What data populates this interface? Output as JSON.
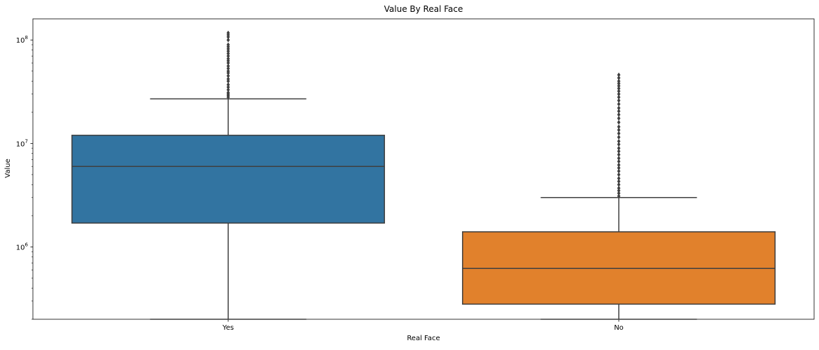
{
  "chart_data": {
    "type": "box",
    "title": "Value By Real Face",
    "xlabel": "Real Face",
    "ylabel": "Value",
    "yscale": "log",
    "ylim": [
      200000,
      160000000
    ],
    "yticks": [
      {
        "value": 1000000,
        "base": "10",
        "exp": "6"
      },
      {
        "value": 10000000,
        "base": "10",
        "exp": "7"
      },
      {
        "value": 100000000,
        "base": "10",
        "exp": "8"
      }
    ],
    "grid": false,
    "categories": [
      "Yes",
      "No"
    ],
    "boxes": [
      {
        "category": "Yes",
        "color": "#3274a1",
        "whisker_low": 200000,
        "q1": 1700000,
        "median": 6000000,
        "q3": 12000000,
        "whisker_high": 27000000,
        "fliers": [
          28000000,
          29000000,
          30000000,
          31000000,
          33000000,
          35000000,
          37000000,
          40000000,
          42000000,
          45000000,
          48000000,
          50000000,
          53000000,
          56000000,
          60000000,
          63000000,
          66000000,
          70000000,
          74000000,
          78000000,
          82000000,
          86000000,
          90000000,
          100000000,
          107000000,
          112000000,
          117000000
        ]
      },
      {
        "category": "No",
        "color": "#e1812c",
        "whisker_low": 200000,
        "q1": 280000,
        "median": 620000,
        "q3": 1400000,
        "whisker_high": 3000000,
        "fliers": [
          3100000,
          3300000,
          3500000,
          3700000,
          4000000,
          4300000,
          4600000,
          5000000,
          5400000,
          5800000,
          6200000,
          6700000,
          7200000,
          7800000,
          8400000,
          9000000,
          9800000,
          10500000,
          11500000,
          12500000,
          13500000,
          14500000,
          16000000,
          17500000,
          19000000,
          20500000,
          22000000,
          24000000,
          26000000,
          28000000,
          30000000,
          32000000,
          34000000,
          36000000,
          38000000,
          40000000,
          43000000,
          46000000
        ]
      }
    ]
  }
}
